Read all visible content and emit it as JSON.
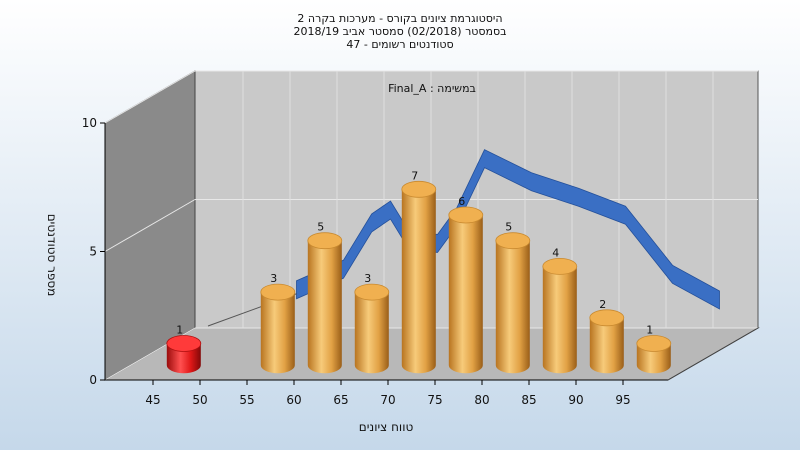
{
  "header": {
    "lines": [
      "היסטוגרמת ציונים בקורס - מערכות בקרה 2",
      "בסמסטר  (02/2018)  סמסטר אביב 2018/19",
      "סטודנטים רשומים - 47"
    ]
  },
  "chart_data": {
    "type": "bar",
    "title": "היסטוגרמת ציונים בקורס - מערכות בקרה 2",
    "subtitle": "בסמסטר  (02/2018)  סמסטר אביב 2018/19 | סטודנטים רשומים - 47",
    "inset_label": "Final_A : במשימה",
    "xlabel": "טווח ציונים",
    "ylabel": "מספר סטודנטים",
    "ylim": [
      0,
      10
    ],
    "y_ticks": [
      0,
      5,
      10
    ],
    "x_ticks": [
      "45",
      "50",
      "55",
      "60",
      "65",
      "70",
      "75",
      "80",
      "85",
      "90",
      "95"
    ],
    "bars": [
      {
        "x": 45,
        "value": 1,
        "label": "1",
        "color": "#e01818"
      },
      {
        "x": 55,
        "value": 3,
        "label": "3",
        "color": "#e8a040"
      },
      {
        "x": 60,
        "value": 5,
        "label": "5",
        "color": "#e8a040"
      },
      {
        "x": 65,
        "value": 3,
        "label": "3",
        "color": "#e8a040"
      },
      {
        "x": 70,
        "value": 7,
        "label": "7",
        "color": "#e8a040"
      },
      {
        "x": 75,
        "value": 6,
        "label": "6",
        "color": "#e8a040"
      },
      {
        "x": 80,
        "value": 5,
        "label": "5",
        "color": "#e8a040"
      },
      {
        "x": 85,
        "value": 4,
        "label": "4",
        "color": "#e8a040"
      },
      {
        "x": 90,
        "value": 2,
        "label": "2",
        "color": "#e8a040"
      },
      {
        "x": 95,
        "value": 1,
        "label": "1",
        "color": "#e8a040"
      }
    ],
    "ribbon": {
      "color": "#3a6fc4",
      "points": [
        {
          "x": 55,
          "y": 2.4
        },
        {
          "x": 60,
          "y": 3.2
        },
        {
          "x": 63,
          "y": 5.0
        },
        {
          "x": 65,
          "y": 5.5
        },
        {
          "x": 67,
          "y": 4.3
        },
        {
          "x": 70,
          "y": 4.2
        },
        {
          "x": 72,
          "y": 5.2
        },
        {
          "x": 75,
          "y": 7.5
        },
        {
          "x": 80,
          "y": 6.6
        },
        {
          "x": 85,
          "y": 6.0
        },
        {
          "x": 90,
          "y": 5.3
        },
        {
          "x": 95,
          "y": 3.0
        },
        {
          "x": 100,
          "y": 2.0
        }
      ]
    },
    "grid": true,
    "legend": "none",
    "colors": {
      "background_top": "#ffffff",
      "background_bottom": "#c5d8ea",
      "back_wall": "#c9c9c9",
      "side_wall": "#8a8a8a",
      "floor": "#b8b8b8"
    }
  }
}
